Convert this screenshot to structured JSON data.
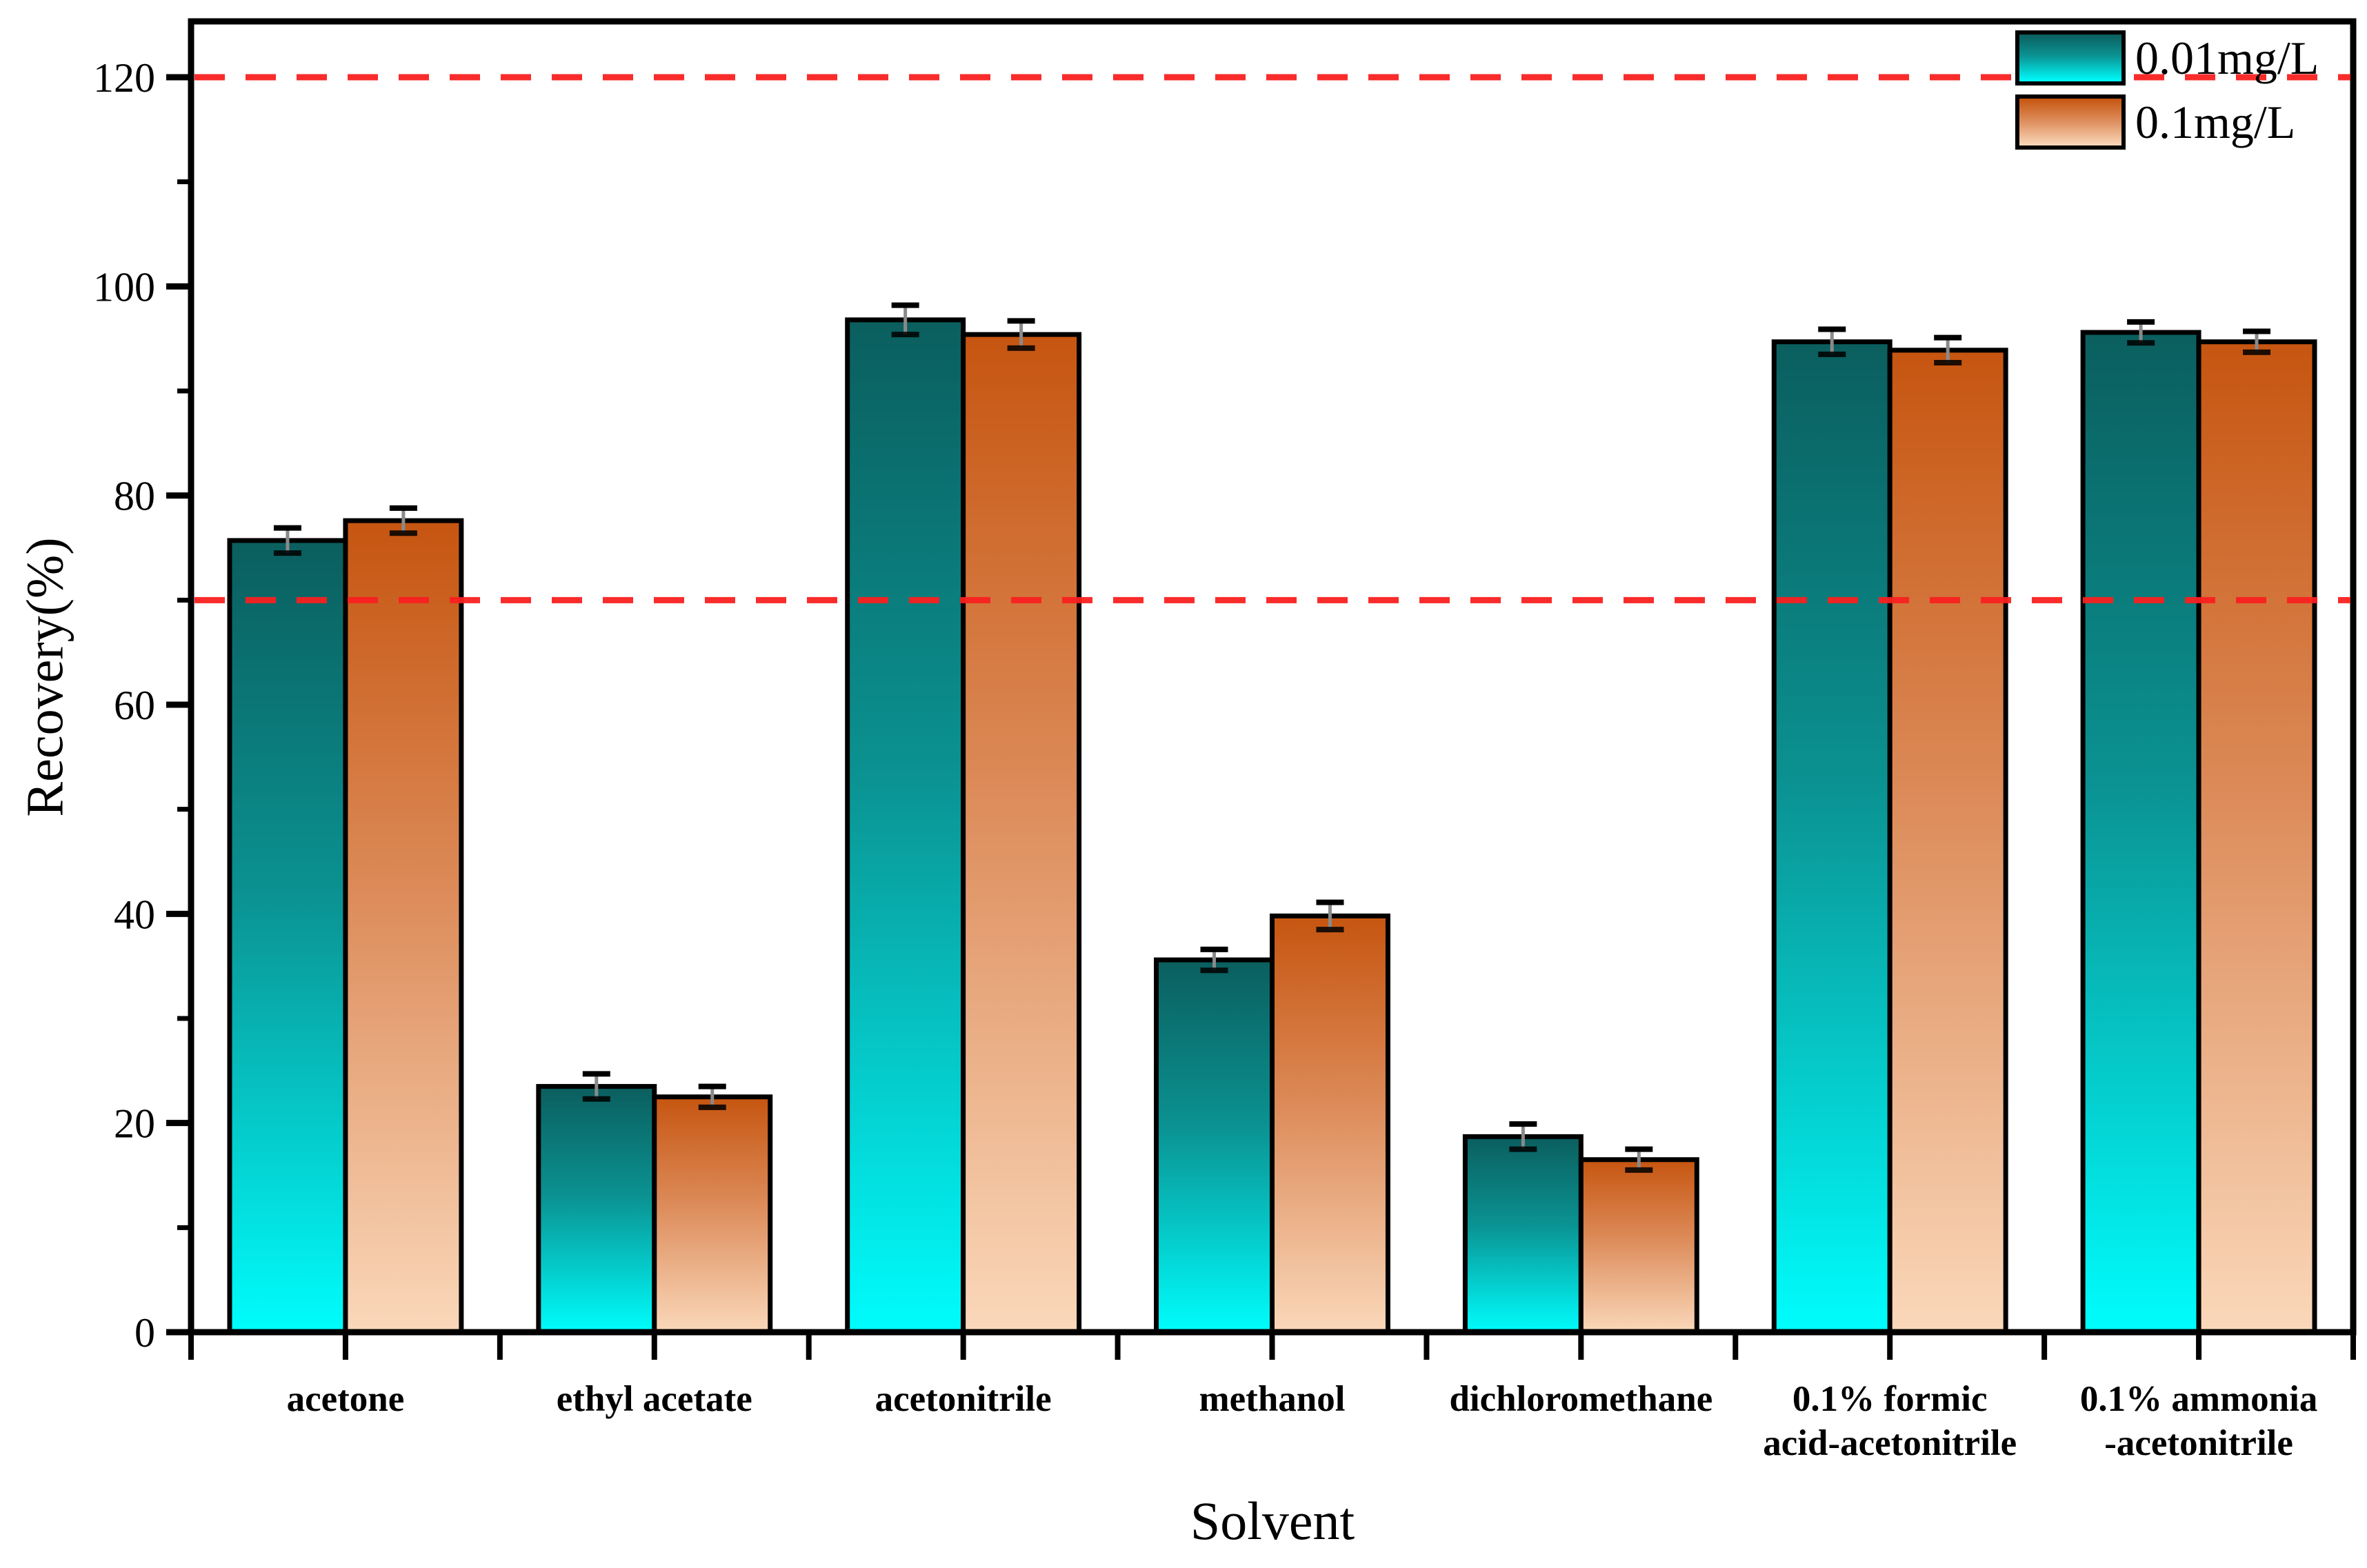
{
  "figure": {
    "background": "#ffffff",
    "accent_red": "#f92020",
    "axis_color": "#000000"
  },
  "legend": {
    "position": "top-right",
    "items": [
      {
        "label": "0.01mg/L",
        "swatch": "teal-gradient"
      },
      {
        "label": "0.1mg/L",
        "swatch": "orange-gradient"
      }
    ]
  },
  "chart_data": {
    "type": "bar",
    "title": "",
    "xlabel": "Solvent",
    "ylabel": "Recovery(%)",
    "ylim": [
      0,
      125
    ],
    "grid": false,
    "legend_position": "top-right",
    "yticks": [
      0,
      20,
      40,
      60,
      80,
      100,
      120
    ],
    "yticks_minor": [
      10,
      30,
      50,
      70,
      90,
      110
    ],
    "reference_lines": [
      {
        "y": 70,
        "style": "dashed",
        "color": "#f92020"
      },
      {
        "y": 120,
        "style": "dashed",
        "color": "#f92020"
      }
    ],
    "categories": [
      "acetone",
      "ethyl acetate",
      "acetonitrile",
      "methanol",
      "dichloromethane",
      "0.1% formic acid-acetonitrile",
      "0.1% ammonia -acetonitrile"
    ],
    "category_label_lines": [
      [
        "acetone"
      ],
      [
        "ethyl acetate"
      ],
      [
        "acetonitrile"
      ],
      [
        "methanol"
      ],
      [
        "dichloromethane"
      ],
      [
        "0.1% formic",
        "acid-acetonitrile"
      ],
      [
        "0.1% ammonia",
        "-acetonitrile"
      ]
    ],
    "series": [
      {
        "name": "0.01mg/L",
        "color_gradient": [
          "#0b5e5e",
          "#0b9292",
          "#00fdfd"
        ],
        "values": [
          75.7,
          23.5,
          96.8,
          35.6,
          18.7,
          94.7,
          95.6
        ],
        "errors": [
          1.2,
          1.2,
          1.4,
          1.0,
          1.2,
          1.2,
          1.0
        ]
      },
      {
        "name": "0.1mg/L",
        "color_gradient": [
          "#c65510",
          "#dc8a58",
          "#fad8ba"
        ],
        "values": [
          77.6,
          22.5,
          95.4,
          39.8,
          16.5,
          93.9,
          94.7
        ],
        "errors": [
          1.2,
          1.0,
          1.3,
          1.3,
          1.0,
          1.2,
          1.0
        ]
      }
    ]
  }
}
